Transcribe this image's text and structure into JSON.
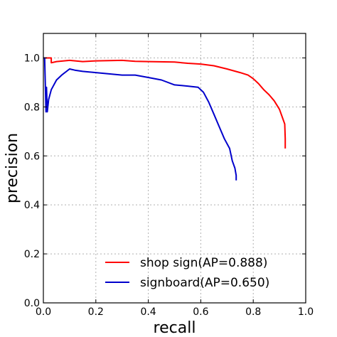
{
  "chart_data": {
    "type": "line",
    "title": "",
    "xlabel": "recall",
    "ylabel": "precision",
    "xlim": [
      0.0,
      1.0
    ],
    "ylim": [
      0.0,
      1.1
    ],
    "x_ticks": [
      "0.0",
      "0.2",
      "0.4",
      "0.6",
      "0.8",
      "1.0"
    ],
    "y_ticks": [
      "0.0",
      "0.2",
      "0.4",
      "0.6",
      "0.8",
      "1.0"
    ],
    "grid": true,
    "legend_position": "lower-right",
    "series": [
      {
        "name": "shop sign(AP=0.888)",
        "color": "#ff0000",
        "points": [
          [
            0.0,
            1.0
          ],
          [
            0.03,
            1.0
          ],
          [
            0.03,
            0.98
          ],
          [
            0.05,
            0.985
          ],
          [
            0.1,
            0.99
          ],
          [
            0.15,
            0.985
          ],
          [
            0.2,
            0.988
          ],
          [
            0.3,
            0.99
          ],
          [
            0.35,
            0.986
          ],
          [
            0.4,
            0.985
          ],
          [
            0.5,
            0.983
          ],
          [
            0.55,
            0.978
          ],
          [
            0.6,
            0.975
          ],
          [
            0.65,
            0.968
          ],
          [
            0.7,
            0.955
          ],
          [
            0.75,
            0.94
          ],
          [
            0.78,
            0.93
          ],
          [
            0.8,
            0.915
          ],
          [
            0.82,
            0.895
          ],
          [
            0.84,
            0.87
          ],
          [
            0.86,
            0.85
          ],
          [
            0.88,
            0.825
          ],
          [
            0.9,
            0.79
          ],
          [
            0.91,
            0.76
          ],
          [
            0.92,
            0.73
          ],
          [
            0.922,
            0.67
          ],
          [
            0.922,
            0.63
          ]
        ]
      },
      {
        "name": "signboard(AP=0.650)",
        "color": "#0000cc",
        "points": [
          [
            0.0,
            1.0
          ],
          [
            0.005,
            1.0
          ],
          [
            0.01,
            0.78
          ],
          [
            0.012,
            0.88
          ],
          [
            0.015,
            0.78
          ],
          [
            0.02,
            0.83
          ],
          [
            0.03,
            0.87
          ],
          [
            0.05,
            0.91
          ],
          [
            0.07,
            0.93
          ],
          [
            0.1,
            0.955
          ],
          [
            0.12,
            0.95
          ],
          [
            0.15,
            0.945
          ],
          [
            0.2,
            0.94
          ],
          [
            0.25,
            0.935
          ],
          [
            0.3,
            0.93
          ],
          [
            0.35,
            0.93
          ],
          [
            0.4,
            0.92
          ],
          [
            0.45,
            0.91
          ],
          [
            0.5,
            0.89
          ],
          [
            0.55,
            0.885
          ],
          [
            0.59,
            0.88
          ],
          [
            0.61,
            0.86
          ],
          [
            0.63,
            0.82
          ],
          [
            0.65,
            0.77
          ],
          [
            0.67,
            0.72
          ],
          [
            0.69,
            0.67
          ],
          [
            0.71,
            0.63
          ],
          [
            0.72,
            0.58
          ],
          [
            0.73,
            0.55
          ],
          [
            0.735,
            0.52
          ],
          [
            0.735,
            0.5
          ]
        ]
      }
    ]
  }
}
